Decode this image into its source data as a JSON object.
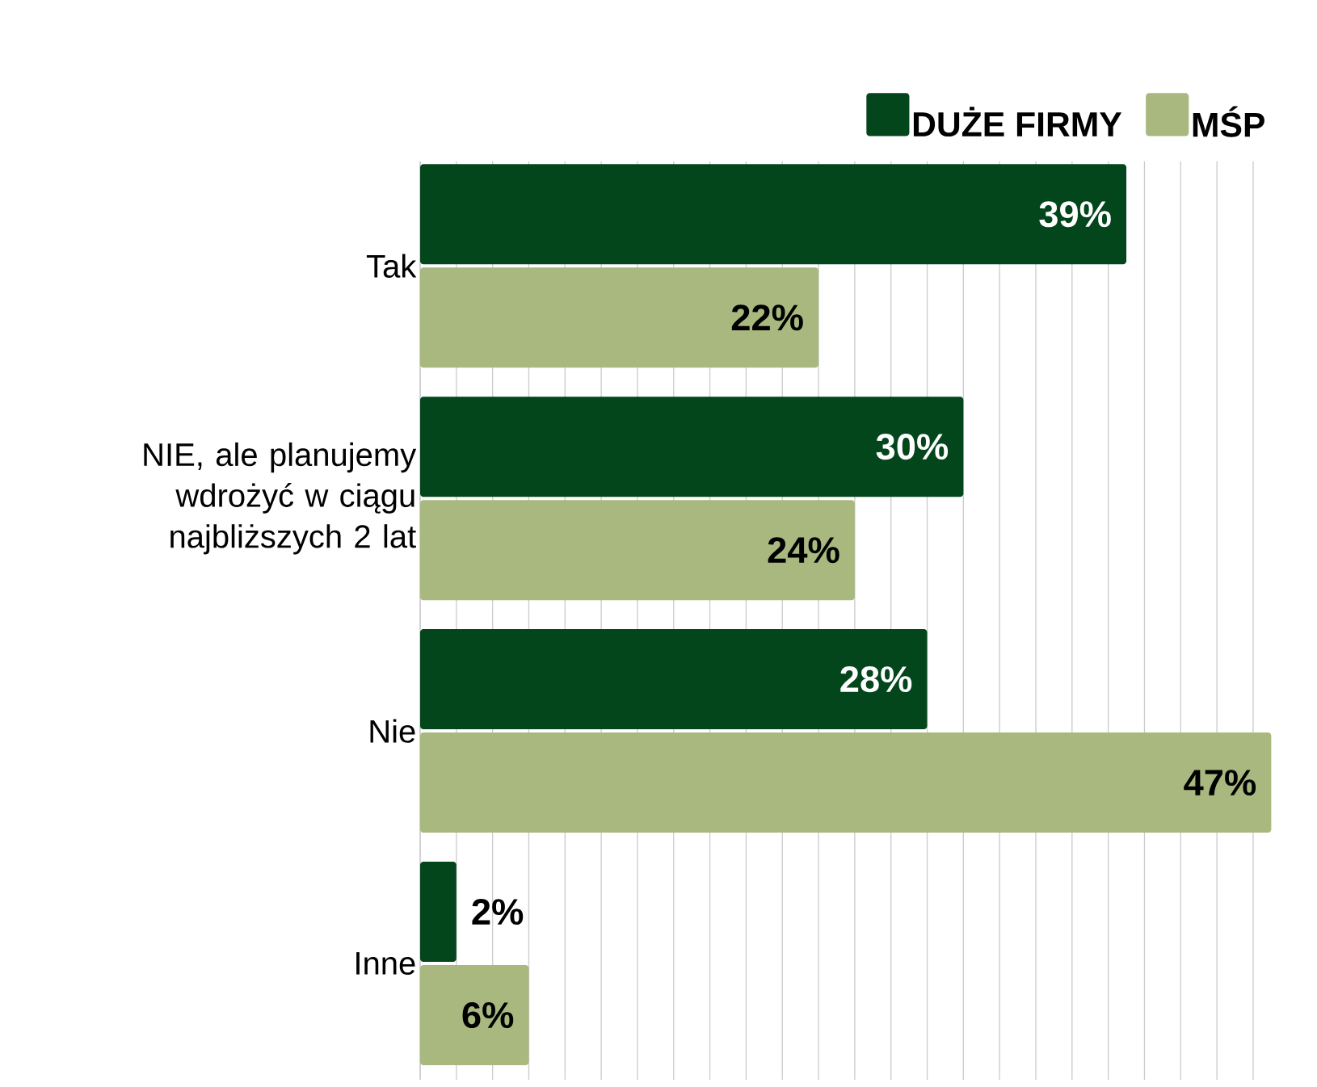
{
  "chart_data": {
    "type": "bar",
    "orientation": "horizontal",
    "categories": [
      "Tak",
      "NIE, ale planujemy wdrożyć w ciągu najbliższych 2 lat",
      "Nie",
      "Inne"
    ],
    "series": [
      {
        "name": "DUŻE FIRMY",
        "color": "#03461c",
        "values": [
          39,
          30,
          28,
          2
        ],
        "value_labels": [
          "39%",
          "30%",
          "28%",
          "2%"
        ]
      },
      {
        "name": "MŚP",
        "color": "#a8b87e",
        "values": [
          22,
          24,
          47,
          6
        ],
        "value_labels": [
          "22%",
          "24%",
          "47%",
          "6%"
        ]
      }
    ],
    "xlim": [
      0,
      47
    ],
    "grid": "x",
    "legend": "top right",
    "tick_labels": "y"
  }
}
